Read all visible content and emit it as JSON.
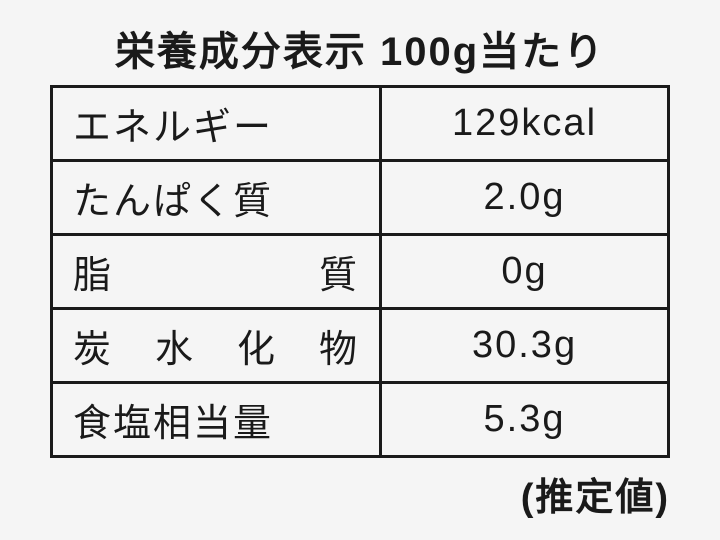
{
  "title": "栄養成分表示 100g当たり",
  "rows": [
    {
      "label": "エネルギー",
      "value": "129kcal",
      "justify": false
    },
    {
      "label": "たんぱく質",
      "value": "2.0g",
      "justify": false
    },
    {
      "label_chars": [
        "脂",
        "質"
      ],
      "value": "0g",
      "justify": true
    },
    {
      "label_chars": [
        "炭",
        "水",
        "化",
        "物"
      ],
      "value": "30.3g",
      "justify": true
    },
    {
      "label": "食塩相当量",
      "value": "5.3g",
      "justify": false
    }
  ],
  "footer": "(推定値)"
}
